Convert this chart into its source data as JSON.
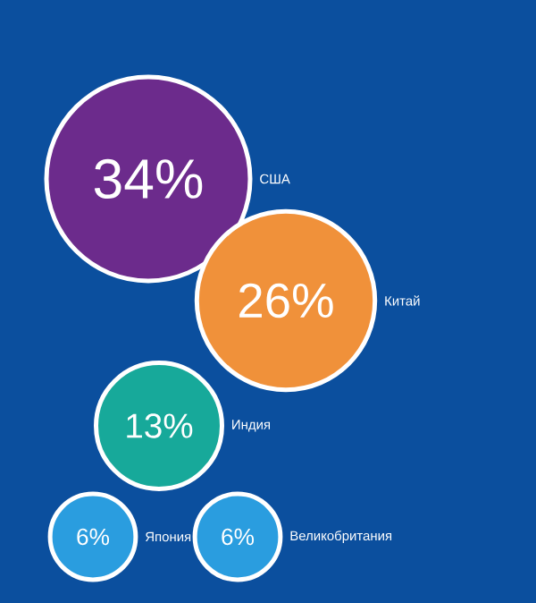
{
  "chart_data": {
    "type": "other",
    "categories": [
      "США",
      "Китай",
      "Индия",
      "Япония",
      "Великобритания"
    ],
    "values": [
      34,
      26,
      13,
      6,
      6
    ],
    "colors": [
      "#6c2b8c",
      "#f0913a",
      "#17a99a",
      "#2a9ddf",
      "#2a9ddf"
    ],
    "value_labels": [
      "34%",
      "26%",
      "13%",
      "6%",
      "6%"
    ]
  }
}
